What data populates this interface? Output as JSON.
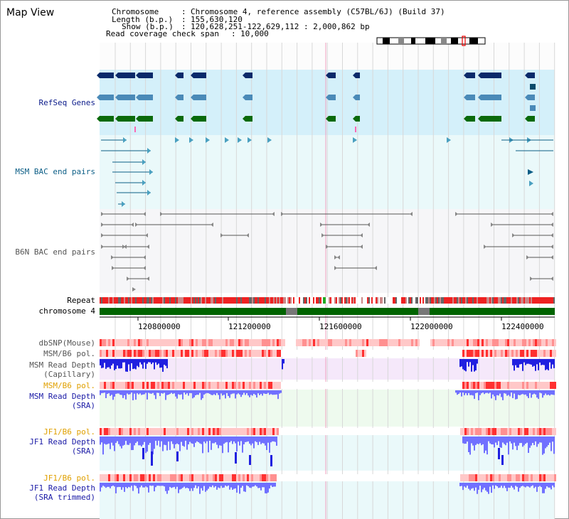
{
  "page": {
    "title": "Map View"
  },
  "header": {
    "chromosome_label": "Chromosome",
    "chromosome_value": "Chromosome 4, reference assembly (C57BL/6J) (Build 37)",
    "length_label": "Length (b.p.)",
    "length_value": "155,630,120",
    "show_label": "Show (b.p.)",
    "show_value": "120,628,251-122,629,112 : 2,000,862 bp",
    "coverage_label": "Read coverage check span",
    "coverage_value": "10,000"
  },
  "tracks": {
    "refseq": "RefSeq Genes",
    "msm_bac": "MSM BAC end pairs",
    "b6n_bac": "B6N BAC end pairs",
    "repeat": "Repeat",
    "chromosome": "chromosome 4",
    "dbsnp": "dbSNP(Mouse)",
    "msm_pol_1": "MSM/B6 pol.",
    "msm_depth_cap_1": "MSM Read Depth",
    "msm_depth_cap_2": "(Capillary)",
    "msm_pol_2": "MSM/B6 pol.",
    "msm_depth_sra_1": "MSM Read Depth",
    "msm_depth_sra_2": "(SRA)",
    "jf1_pol_1": "JF1/B6 pol.",
    "jf1_depth_sra_1": "JF1 Read Depth",
    "jf1_depth_sra_2": "(SRA)",
    "jf1_pol_2": "JF1/B6 pol.",
    "jf1_depth_trim_1": "JF1 Read Depth",
    "jf1_depth_trim_2": "(SRA trimmed)"
  },
  "axis": {
    "ticks": [
      "120800000",
      "121200000",
      "121600000",
      "122000000",
      "122400000"
    ]
  },
  "colors": {
    "refseq_bg": "#d4f0fa",
    "bac_bg": "#eaf9fa",
    "chromosome": "#006400",
    "depth_blue": "#2020e0",
    "depth_light": "#7070ff",
    "pol_red": "#ff0000"
  }
}
